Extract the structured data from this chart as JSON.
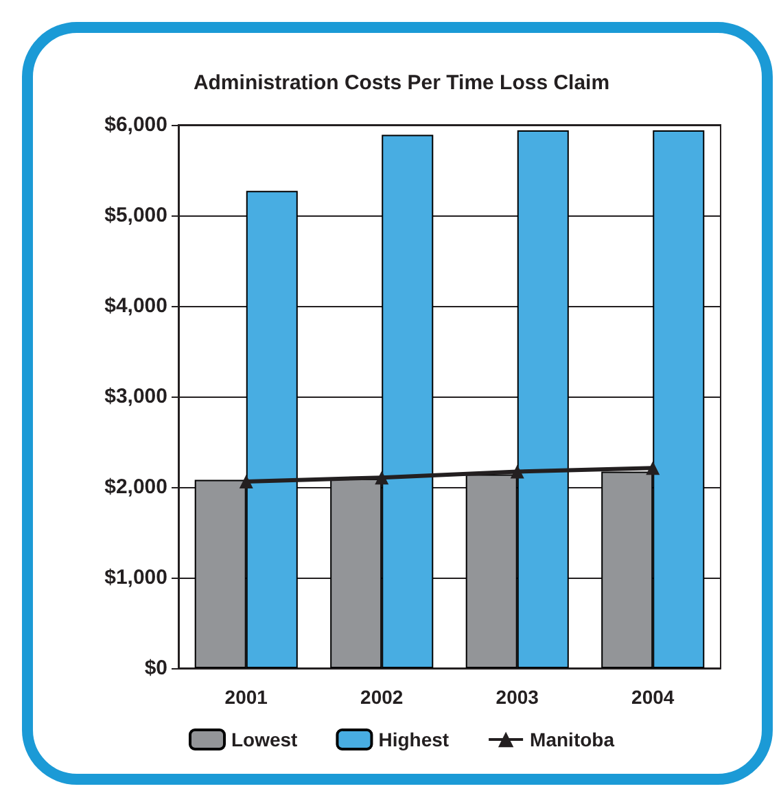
{
  "chart_data": {
    "type": "bar",
    "title": "Administration Costs Per Time Loss Claim",
    "categories": [
      "2001",
      "2002",
      "2003",
      "2004"
    ],
    "series": [
      {
        "name": "Lowest",
        "color": "#939598",
        "values": [
          2080,
          2090,
          2140,
          2170
        ]
      },
      {
        "name": "Highest",
        "color": "#48ade2",
        "values": [
          5270,
          5890,
          5940,
          5940
        ]
      },
      {
        "name": "Manitoba",
        "type": "line",
        "color": "#231f20",
        "marker": "triangle",
        "values": [
          2060,
          2105,
          2170,
          2210
        ]
      }
    ],
    "ylim": [
      0,
      6000
    ],
    "yticks": [
      {
        "value": 0,
        "label": "$0"
      },
      {
        "value": 1000,
        "label": "$1,000"
      },
      {
        "value": 2000,
        "label": "$2,000"
      },
      {
        "value": 3000,
        "label": "$3,000"
      },
      {
        "value": 4000,
        "label": "$4,000"
      },
      {
        "value": 5000,
        "label": "$5,000"
      },
      {
        "value": 6000,
        "label": "$6,000"
      }
    ],
    "grid": "y",
    "legend": "bottom"
  }
}
